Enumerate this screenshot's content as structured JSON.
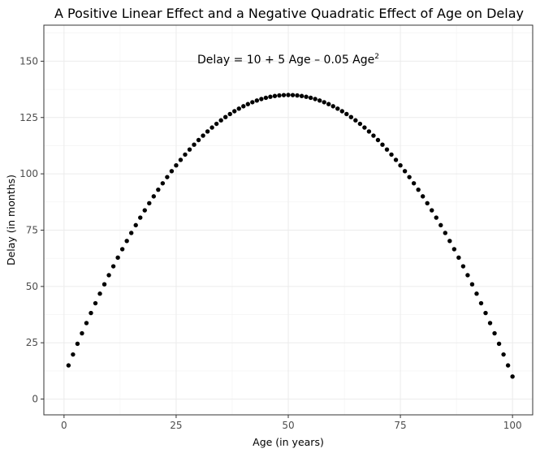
{
  "chart_data": {
    "type": "scatter",
    "title": "A Positive Linear Effect and a Negative Quadratic Effect of Age on Delay",
    "xlabel": "Age (in years)",
    "ylabel": "Delay (in months)",
    "annotation": {
      "main": "Delay = 10 + 5 Age – 0.05 Age",
      "superscript": "2"
    },
    "xlim": [
      -4.5,
      104.5
    ],
    "ylim": [
      -7,
      166
    ],
    "x_ticks": [
      0,
      25,
      50,
      75,
      100
    ],
    "x_tick_labels": [
      "0",
      "25",
      "50",
      "75",
      "100"
    ],
    "y_ticks": [
      0,
      25,
      50,
      75,
      100,
      125,
      150
    ],
    "y_tick_labels": [
      "0",
      "25",
      "50",
      "75",
      "100",
      "125",
      "150"
    ],
    "grid": true,
    "marker_color": "#000000",
    "series": [
      {
        "x": [
          1,
          2,
          3,
          4,
          5,
          6,
          7,
          8,
          9,
          10,
          11,
          12,
          13,
          14,
          15,
          16,
          17,
          18,
          19,
          20,
          21,
          22,
          23,
          24,
          25,
          26,
          27,
          28,
          29,
          30,
          31,
          32,
          33,
          34,
          35,
          36,
          37,
          38,
          39,
          40,
          41,
          42,
          43,
          44,
          45,
          46,
          47,
          48,
          49,
          50,
          51,
          52,
          53,
          54,
          55,
          56,
          57,
          58,
          59,
          60,
          61,
          62,
          63,
          64,
          65,
          66,
          67,
          68,
          69,
          70,
          71,
          72,
          73,
          74,
          75,
          76,
          77,
          78,
          79,
          80,
          81,
          82,
          83,
          84,
          85,
          86,
          87,
          88,
          89,
          90,
          91,
          92,
          93,
          94,
          95,
          96,
          97,
          98,
          99,
          100
        ],
        "y": [
          14.95,
          19.8,
          24.55,
          29.2,
          33.75,
          38.2,
          42.55,
          46.8,
          50.95,
          55,
          58.95,
          62.8,
          66.55,
          70.2,
          73.75,
          77.2,
          80.55,
          83.8,
          86.95,
          90,
          92.95,
          95.8,
          98.55,
          101.2,
          103.75,
          106.2,
          108.55,
          110.8,
          112.95,
          115,
          116.95,
          118.8,
          120.55,
          122.2,
          123.75,
          125.2,
          126.55,
          127.8,
          128.95,
          130,
          130.95,
          131.8,
          132.55,
          133.2,
          133.75,
          134.2,
          134.55,
          134.8,
          134.95,
          135,
          134.95,
          134.8,
          134.55,
          134.2,
          133.75,
          133.2,
          132.55,
          131.8,
          130.95,
          130,
          128.95,
          127.8,
          126.55,
          125.2,
          123.75,
          122.2,
          120.55,
          118.8,
          116.95,
          115,
          112.95,
          110.8,
          108.55,
          106.2,
          103.75,
          101.2,
          98.55,
          95.8,
          92.95,
          90,
          86.95,
          83.8,
          80.55,
          77.2,
          73.75,
          70.2,
          66.55,
          62.8,
          58.95,
          55,
          50.95,
          46.8,
          42.55,
          38.2,
          33.75,
          29.2,
          24.55,
          19.8,
          14.95,
          10
        ]
      }
    ]
  }
}
